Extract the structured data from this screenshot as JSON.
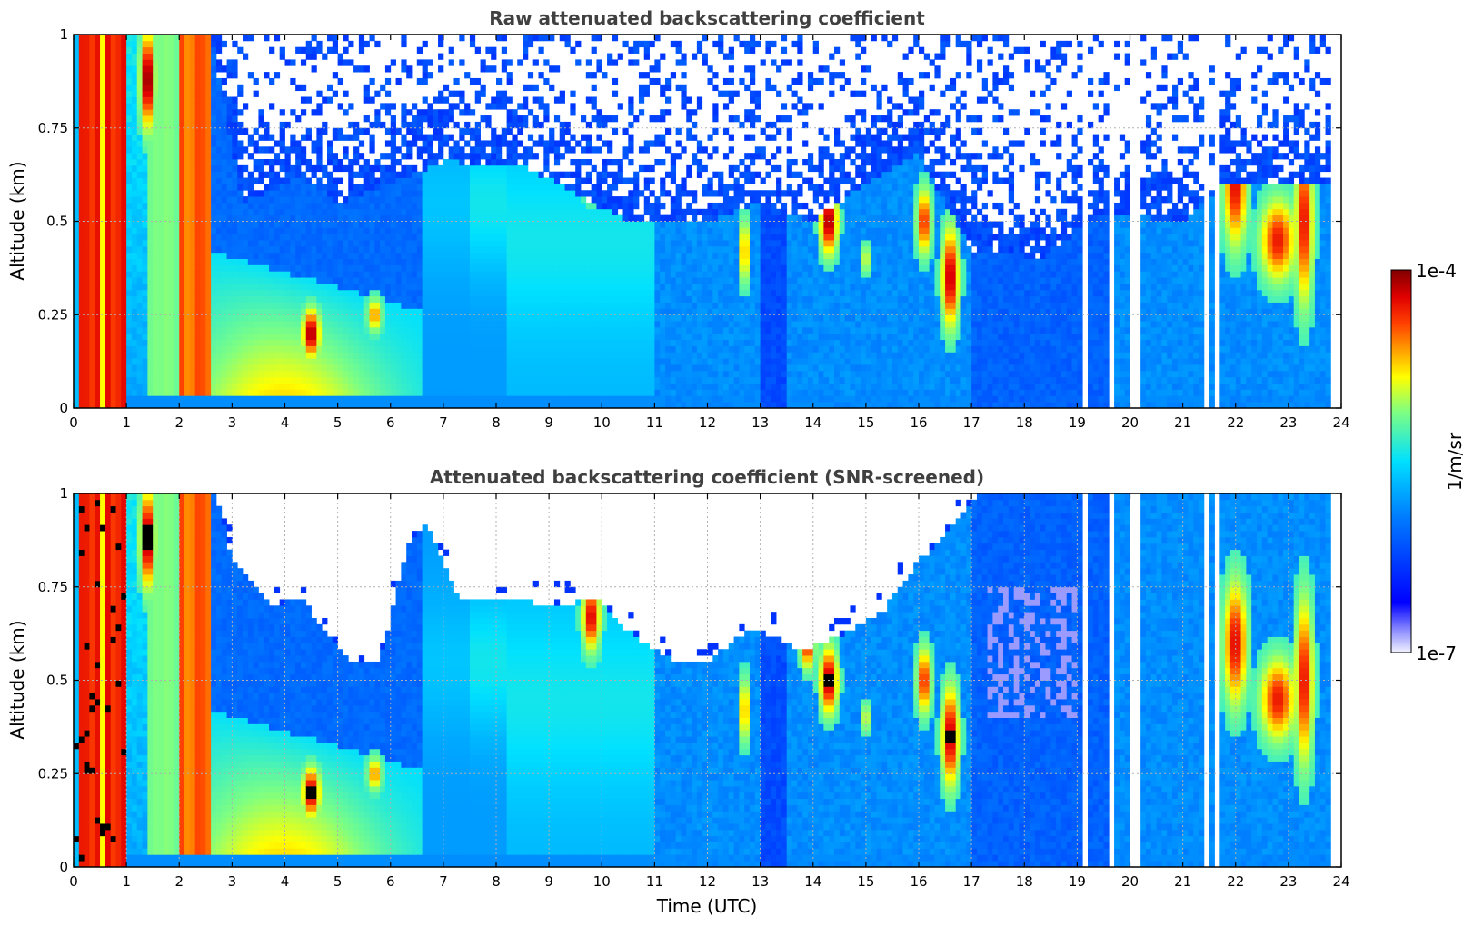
{
  "chart_data": [
    {
      "type": "heatmap",
      "title": "Raw attenuated backscattering coefficient",
      "xlabel": "",
      "ylabel": "Altitude (km)",
      "xlim": [
        0,
        24
      ],
      "ylim": [
        0,
        1
      ],
      "x_ticks": [
        "0",
        "1",
        "2",
        "3",
        "4",
        "5",
        "6",
        "7",
        "8",
        "9",
        "10",
        "11",
        "12",
        "13",
        "14",
        "15",
        "16",
        "17",
        "18",
        "19",
        "20",
        "21",
        "22",
        "23",
        "24"
      ],
      "y_ticks": [
        "0",
        "0.25",
        "0.5",
        "0.75",
        "1"
      ],
      "grid": true,
      "screened": false
    },
    {
      "type": "heatmap",
      "title": "Attenuated backscattering coefficient (SNR-screened)",
      "xlabel": "Time (UTC)",
      "ylabel": "Altitude (km)",
      "xlim": [
        0,
        24
      ],
      "ylim": [
        0,
        1
      ],
      "x_ticks": [
        "0",
        "1",
        "2",
        "3",
        "4",
        "5",
        "6",
        "7",
        "8",
        "9",
        "10",
        "11",
        "12",
        "13",
        "14",
        "15",
        "16",
        "17",
        "18",
        "19",
        "20",
        "21",
        "22",
        "23",
        "24"
      ],
      "y_ticks": [
        "0",
        "0.25",
        "0.5",
        "0.75",
        "1"
      ],
      "grid": true,
      "screened": true
    }
  ],
  "colorbar": {
    "label": "1/m/sr",
    "max_label": "1e-4",
    "min_label": "1e-7",
    "range": [
      1e-07,
      0.0001
    ],
    "scale": "log",
    "colormap": "jet"
  }
}
